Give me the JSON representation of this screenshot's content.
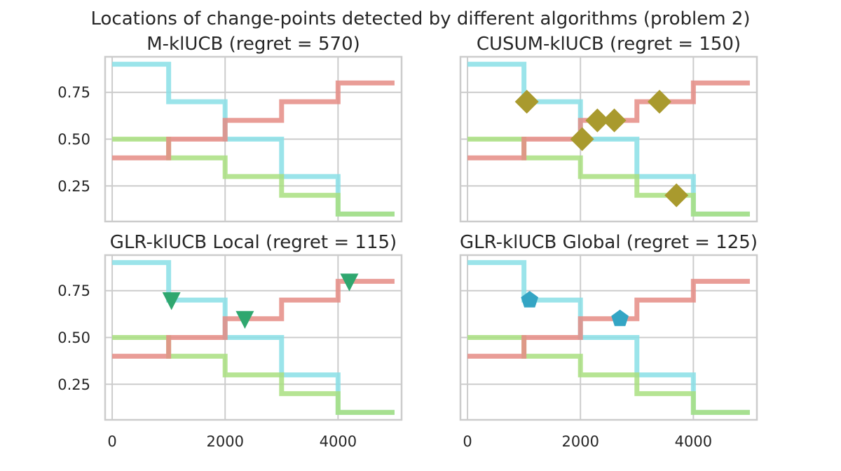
{
  "suptitle": "Locations of change-points detected by different algorithms (problem 2)",
  "chart_data": {
    "type": "line",
    "shared_axes": {
      "xlim": [
        -125,
        5125
      ],
      "ylim": [
        0.06,
        0.94
      ],
      "xticks": [
        0,
        2000,
        4000
      ],
      "xtick_labels": [
        "0",
        "2000",
        "4000"
      ],
      "yticks": [
        0.25,
        0.5,
        0.75
      ],
      "ytick_labels": [
        "0.25",
        "0.50",
        "0.75"
      ],
      "grid": true
    },
    "series": [
      {
        "values": [
          [
            0,
            0.9
          ],
          [
            1000,
            0.9
          ],
          [
            1000,
            0.7
          ],
          [
            2000,
            0.7
          ],
          [
            2000,
            0.5
          ],
          [
            3000,
            0.5
          ],
          [
            3000,
            0.3
          ],
          [
            4000,
            0.3
          ],
          [
            4000,
            0.1
          ],
          [
            5000,
            0.1
          ]
        ],
        "color": "#8adfe6"
      },
      {
        "values": [
          [
            0,
            0.5
          ],
          [
            1000,
            0.5
          ],
          [
            1000,
            0.4
          ],
          [
            2000,
            0.4
          ],
          [
            2000,
            0.3
          ],
          [
            3000,
            0.3
          ],
          [
            3000,
            0.2
          ],
          [
            4000,
            0.2
          ],
          [
            4000,
            0.1
          ],
          [
            5000,
            0.1
          ]
        ],
        "color": "#a9df80"
      },
      {
        "values": [
          [
            0,
            0.4
          ],
          [
            1000,
            0.4
          ],
          [
            1000,
            0.5
          ],
          [
            2000,
            0.5
          ],
          [
            2000,
            0.6
          ],
          [
            3000,
            0.6
          ],
          [
            3000,
            0.7
          ],
          [
            4000,
            0.7
          ],
          [
            4000,
            0.8
          ],
          [
            5000,
            0.8
          ]
        ],
        "color": "#e58c85"
      }
    ],
    "subplots": [
      {
        "title": "M-klUCB (regret = 570)",
        "markers": [],
        "marker_shape": "none",
        "marker_color": ""
      },
      {
        "title": "CUSUM-klUCB (regret = 150)",
        "marker_shape": "diamond",
        "marker_color": "#a99a2e",
        "markers": [
          [
            1050,
            0.7
          ],
          [
            2030,
            0.5
          ],
          [
            2300,
            0.6
          ],
          [
            2600,
            0.6
          ],
          [
            3400,
            0.7
          ],
          [
            3700,
            0.2
          ]
        ]
      },
      {
        "title": "GLR-klUCB Local (regret = 115)",
        "marker_shape": "triangle-down",
        "marker_color": "#2fa76f",
        "markers": [
          [
            1050,
            0.7
          ],
          [
            2350,
            0.6
          ],
          [
            4200,
            0.8
          ]
        ]
      },
      {
        "title": "GLR-klUCB Global (regret = 125)",
        "marker_shape": "pentagon",
        "marker_color": "#34a5c4",
        "markers": [
          [
            1100,
            0.7
          ],
          [
            2700,
            0.6
          ]
        ]
      }
    ]
  }
}
